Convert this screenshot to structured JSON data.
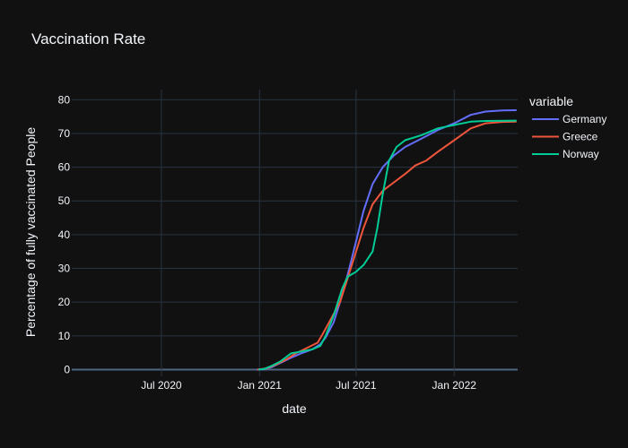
{
  "chart_data": {
    "type": "line",
    "title": "Vaccination Rate",
    "xlabel": "date",
    "ylabel": "Percentage of fully vaccinated People",
    "x_type": "date",
    "xlim": [
      "2020-01-15",
      "2022-04-30"
    ],
    "ylim": [
      -2,
      83
    ],
    "x_ticks": [
      {
        "date": "2020-07-01",
        "label": "Jul 2020"
      },
      {
        "date": "2021-01-01",
        "label": "Jan 2021"
      },
      {
        "date": "2021-07-01",
        "label": "Jul 2021"
      },
      {
        "date": "2022-01-01",
        "label": "Jan 2022"
      }
    ],
    "y_ticks": [
      0,
      10,
      20,
      30,
      40,
      50,
      60,
      70,
      80
    ],
    "grid": true,
    "legend": {
      "title": "variable",
      "position": "right"
    },
    "series": [
      {
        "name": "Germany",
        "color": "#636efa",
        "points": [
          [
            "2020-12-27",
            0
          ],
          [
            "2021-01-10",
            0.1
          ],
          [
            "2021-01-25",
            0.8
          ],
          [
            "2021-02-10",
            2.0
          ],
          [
            "2021-03-01",
            3.5
          ],
          [
            "2021-03-20",
            4.8
          ],
          [
            "2021-04-10",
            6.0
          ],
          [
            "2021-04-25",
            7.5
          ],
          [
            "2021-05-05",
            9.5
          ],
          [
            "2021-05-20",
            14
          ],
          [
            "2021-06-01",
            20
          ],
          [
            "2021-06-10",
            25
          ],
          [
            "2021-06-20",
            31
          ],
          [
            "2021-07-01",
            38
          ],
          [
            "2021-07-15",
            47
          ],
          [
            "2021-08-01",
            55
          ],
          [
            "2021-08-20",
            60
          ],
          [
            "2021-09-10",
            63.5
          ],
          [
            "2021-10-01",
            66
          ],
          [
            "2021-11-01",
            68.5
          ],
          [
            "2021-12-01",
            71
          ],
          [
            "2022-01-01",
            73
          ],
          [
            "2022-02-01",
            75.5
          ],
          [
            "2022-03-01",
            76.5
          ],
          [
            "2022-04-01",
            76.8
          ],
          [
            "2022-04-28",
            76.9
          ]
        ]
      },
      {
        "name": "Greece",
        "color": "#ef553b",
        "points": [
          [
            "2020-12-28",
            0
          ],
          [
            "2021-01-15",
            0.4
          ],
          [
            "2021-02-01",
            1.5
          ],
          [
            "2021-02-20",
            3.0
          ],
          [
            "2021-03-10",
            4.8
          ],
          [
            "2021-04-01",
            6.5
          ],
          [
            "2021-04-20",
            8.0
          ],
          [
            "2021-05-01",
            11
          ],
          [
            "2021-05-15",
            15
          ],
          [
            "2021-06-01",
            20
          ],
          [
            "2021-06-15",
            27
          ],
          [
            "2021-07-01",
            35
          ],
          [
            "2021-07-15",
            42
          ],
          [
            "2021-08-01",
            49
          ],
          [
            "2021-08-20",
            53
          ],
          [
            "2021-09-10",
            55.5
          ],
          [
            "2021-10-01",
            58
          ],
          [
            "2021-10-20",
            60.5
          ],
          [
            "2021-11-10",
            62
          ],
          [
            "2021-12-01",
            64.5
          ],
          [
            "2022-01-01",
            68
          ],
          [
            "2022-02-01",
            71.5
          ],
          [
            "2022-03-01",
            73
          ],
          [
            "2022-04-01",
            73.4
          ],
          [
            "2022-04-28",
            73.5
          ]
        ]
      },
      {
        "name": "Norway",
        "color": "#00cc96",
        "points": [
          [
            "2020-12-30",
            0
          ],
          [
            "2021-01-10",
            0.2
          ],
          [
            "2021-01-25",
            1.2
          ],
          [
            "2021-02-10",
            2.5
          ],
          [
            "2021-03-01",
            4.8
          ],
          [
            "2021-03-25",
            5.5
          ],
          [
            "2021-04-10",
            6.0
          ],
          [
            "2021-04-25",
            7.0
          ],
          [
            "2021-05-05",
            10
          ],
          [
            "2021-05-20",
            16
          ],
          [
            "2021-06-05",
            24
          ],
          [
            "2021-06-15",
            27.5
          ],
          [
            "2021-07-01",
            29
          ],
          [
            "2021-07-15",
            31
          ],
          [
            "2021-08-01",
            35
          ],
          [
            "2021-08-10",
            42
          ],
          [
            "2021-08-20",
            52
          ],
          [
            "2021-09-01",
            62
          ],
          [
            "2021-09-15",
            66
          ],
          [
            "2021-10-01",
            68
          ],
          [
            "2021-11-01",
            69.5
          ],
          [
            "2021-12-01",
            71.5
          ],
          [
            "2022-01-01",
            72.5
          ],
          [
            "2022-02-01",
            73.5
          ],
          [
            "2022-03-01",
            73.7
          ],
          [
            "2022-04-28",
            73.8
          ]
        ]
      }
    ]
  }
}
